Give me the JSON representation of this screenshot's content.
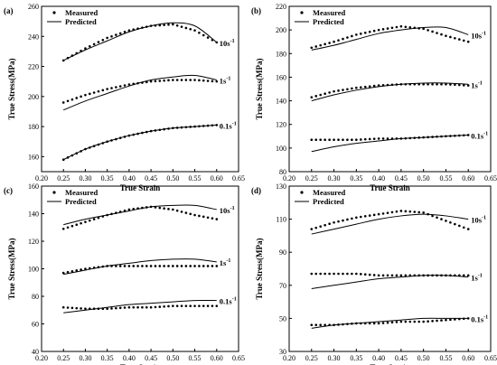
{
  "chart_data": [
    {
      "panel": "(a)",
      "type": "scatter",
      "xlabel": "True Strain",
      "ylabel": "True Stress(MPa)",
      "xlim": [
        0.2,
        0.65
      ],
      "ylim": [
        150,
        260
      ],
      "xticks": [
        "0.20",
        "0.25",
        "0.30",
        "0.35",
        "0.40",
        "0.45",
        "0.50",
        "0.55",
        "0.60",
        "0.65"
      ],
      "yticks": [
        "160",
        "180",
        "200",
        "220",
        "240",
        "260"
      ],
      "legend": {
        "measured": "Measured",
        "predicted": "Predicted",
        "placement": "top-left"
      },
      "series": [
        {
          "label": "10s",
          "exp": "-1",
          "measured": {
            "x": [
              0.25,
              0.3,
              0.35,
              0.4,
              0.45,
              0.5,
              0.55,
              0.6
            ],
            "y": [
              224,
              232,
              239,
              244,
              247,
              248,
              244,
              236
            ]
          },
          "predicted": {
            "x": [
              0.25,
              0.3,
              0.35,
              0.4,
              0.45,
              0.5,
              0.55,
              0.6
            ],
            "y": [
              224,
              231,
              237,
              243,
              247,
              249,
              247,
              236
            ]
          }
        },
        {
          "label": "1s",
          "exp": "-1",
          "measured": {
            "x": [
              0.25,
              0.3,
              0.35,
              0.4,
              0.45,
              0.5,
              0.55,
              0.6
            ],
            "y": [
              196,
              201,
              205,
              208,
              210,
              211,
              211,
              210
            ]
          },
          "predicted": {
            "x": [
              0.25,
              0.3,
              0.35,
              0.4,
              0.45,
              0.5,
              0.55,
              0.6
            ],
            "y": [
              191,
              197,
              202,
              207,
              211,
              213,
              214,
              211
            ]
          }
        },
        {
          "label": "0.1s",
          "exp": "-1",
          "measured": {
            "x": [
              0.25,
              0.3,
              0.35,
              0.4,
              0.45,
              0.5,
              0.55,
              0.6
            ],
            "y": [
              158,
              165,
              170,
              174,
              177,
              179,
              180,
              181
            ]
          },
          "predicted": {
            "x": [
              0.25,
              0.3,
              0.35,
              0.4,
              0.45,
              0.5,
              0.55,
              0.6
            ],
            "y": [
              158,
              165,
              170,
              174,
              177,
              179,
              180,
              181
            ]
          }
        }
      ]
    },
    {
      "panel": "(b)",
      "type": "scatter",
      "xlabel": "True Strain",
      "ylabel": "True Stress(MPa)",
      "xlim": [
        0.2,
        0.65
      ],
      "ylim": [
        80,
        220
      ],
      "xticks": [
        "0.20",
        "0.25",
        "0.30",
        "0.35",
        "0.40",
        "0.45",
        "0.50",
        "0.55",
        "0.60",
        "0.65"
      ],
      "yticks": [
        "80",
        "100",
        "120",
        "140",
        "160",
        "180",
        "200",
        "220"
      ],
      "legend": {
        "measured": "Measured",
        "predicted": "Predicted",
        "placement": "top-left"
      },
      "series": [
        {
          "label": "10s",
          "exp": "-1",
          "measured": {
            "x": [
              0.25,
              0.3,
              0.35,
              0.4,
              0.45,
              0.5,
              0.55,
              0.6
            ],
            "y": [
              185,
              190,
              196,
              200,
              203,
              201,
              195,
              190
            ]
          },
          "predicted": {
            "x": [
              0.25,
              0.3,
              0.35,
              0.4,
              0.45,
              0.5,
              0.55,
              0.6
            ],
            "y": [
              183,
              187,
              192,
              197,
              200,
              202,
              202,
              196
            ]
          }
        },
        {
          "label": "1s",
          "exp": "-1",
          "measured": {
            "x": [
              0.25,
              0.3,
              0.35,
              0.4,
              0.45,
              0.5,
              0.55,
              0.6
            ],
            "y": [
              143,
              148,
              151,
              153,
              154,
              154,
              154,
              153
            ]
          },
          "predicted": {
            "x": [
              0.25,
              0.3,
              0.35,
              0.4,
              0.45,
              0.5,
              0.55,
              0.6
            ],
            "y": [
              140,
              145,
              149,
              152,
              154,
              155,
              155,
              154
            ]
          }
        },
        {
          "label": "0.1s",
          "exp": "-1",
          "measured": {
            "x": [
              0.25,
              0.3,
              0.35,
              0.4,
              0.45,
              0.5,
              0.55,
              0.6
            ],
            "y": [
              107,
              107,
              107,
              108,
              108,
              109,
              110,
              111
            ]
          },
          "predicted": {
            "x": [
              0.25,
              0.3,
              0.35,
              0.4,
              0.45,
              0.5,
              0.55,
              0.6
            ],
            "y": [
              97,
              101,
              104,
              106,
              108,
              109,
              110,
              111
            ]
          }
        }
      ]
    },
    {
      "panel": "(c)",
      "type": "scatter",
      "xlabel": "True Strain",
      "ylabel": "True Stress(MPa)",
      "xlim": [
        0.2,
        0.65
      ],
      "ylim": [
        40,
        160
      ],
      "xticks": [
        "0.20",
        "0.25",
        "0.30",
        "0.35",
        "0.40",
        "0.45",
        "0.50",
        "0.55",
        "0.60",
        "0.65"
      ],
      "yticks": [
        "40",
        "60",
        "80",
        "100",
        "120",
        "140",
        "160"
      ],
      "legend": {
        "measured": "Measured",
        "predicted": "Predicted",
        "placement": "top-left"
      },
      "series": [
        {
          "label": "10s",
          "exp": "-1",
          "measured": {
            "x": [
              0.25,
              0.3,
              0.35,
              0.4,
              0.45,
              0.5,
              0.55,
              0.6
            ],
            "y": [
              129,
              134,
              139,
              143,
              145,
              143,
              139,
              136
            ]
          },
          "predicted": {
            "x": [
              0.25,
              0.3,
              0.35,
              0.4,
              0.45,
              0.5,
              0.55,
              0.6
            ],
            "y": [
              132,
              136,
              139,
              142,
              145,
              146,
              146,
              143
            ]
          }
        },
        {
          "label": "1s",
          "exp": "-1",
          "measured": {
            "x": [
              0.25,
              0.3,
              0.35,
              0.4,
              0.45,
              0.5,
              0.55,
              0.6
            ],
            "y": [
              97,
              100,
              102,
              102,
              102,
              102,
              102,
              102
            ]
          },
          "predicted": {
            "x": [
              0.25,
              0.3,
              0.35,
              0.4,
              0.45,
              0.5,
              0.55,
              0.6
            ],
            "y": [
              96,
              99,
              102,
              104,
              106,
              107,
              107,
              105
            ]
          }
        },
        {
          "label": "0.1s",
          "exp": "-1",
          "measured": {
            "x": [
              0.25,
              0.3,
              0.35,
              0.4,
              0.45,
              0.5,
              0.55,
              0.6
            ],
            "y": [
              72,
              71,
              71,
              72,
              72,
              73,
              73,
              73
            ]
          },
          "predicted": {
            "x": [
              0.25,
              0.3,
              0.35,
              0.4,
              0.45,
              0.5,
              0.55,
              0.6
            ],
            "y": [
              68,
              70,
              72,
              74,
              75,
              76,
              77,
              77
            ]
          }
        }
      ]
    },
    {
      "panel": "(d)",
      "type": "scatter",
      "xlabel": "True Strain",
      "ylabel": "True Stress(MPa)",
      "xlim": [
        0.2,
        0.65
      ],
      "ylim": [
        30,
        130
      ],
      "xticks": [
        "0.20",
        "0.25",
        "0.30",
        "0.35",
        "0.40",
        "0.45",
        "0.50",
        "0.55",
        "0.60",
        "0.65"
      ],
      "yticks": [
        "30",
        "50",
        "70",
        "90",
        "110",
        "130"
      ],
      "legend": {
        "measured": "Measured",
        "predicted": "Predicted",
        "placement": "top-left"
      },
      "series": [
        {
          "label": "10s",
          "exp": "-1",
          "measured": {
            "x": [
              0.25,
              0.3,
              0.35,
              0.4,
              0.45,
              0.5,
              0.55,
              0.6
            ],
            "y": [
              104,
              108,
              111,
              113,
              115,
              114,
              109,
              104
            ]
          },
          "predicted": {
            "x": [
              0.25,
              0.3,
              0.35,
              0.4,
              0.45,
              0.5,
              0.55,
              0.6
            ],
            "y": [
              101,
              104,
              107,
              110,
              112,
              113,
              112,
              110
            ]
          }
        },
        {
          "label": "1s",
          "exp": "-1",
          "measured": {
            "x": [
              0.25,
              0.3,
              0.35,
              0.4,
              0.45,
              0.5,
              0.55,
              0.6
            ],
            "y": [
              77,
              77,
              77,
              76,
              76,
              76,
              76,
              76
            ]
          },
          "predicted": {
            "x": [
              0.25,
              0.3,
              0.35,
              0.4,
              0.45,
              0.5,
              0.55,
              0.6
            ],
            "y": [
              68,
              70,
              72,
              74,
              75,
              76,
              76,
              75
            ]
          }
        },
        {
          "label": "0.1s",
          "exp": "-1",
          "measured": {
            "x": [
              0.25,
              0.3,
              0.35,
              0.4,
              0.45,
              0.5,
              0.55,
              0.6
            ],
            "y": [
              46,
              46,
              47,
              47,
              48,
              48,
              49,
              50
            ]
          },
          "predicted": {
            "x": [
              0.25,
              0.3,
              0.35,
              0.4,
              0.45,
              0.5,
              0.55,
              0.6
            ],
            "y": [
              44,
              46,
              47,
              48,
              49,
              50,
              50,
              50
            ]
          }
        }
      ]
    }
  ]
}
